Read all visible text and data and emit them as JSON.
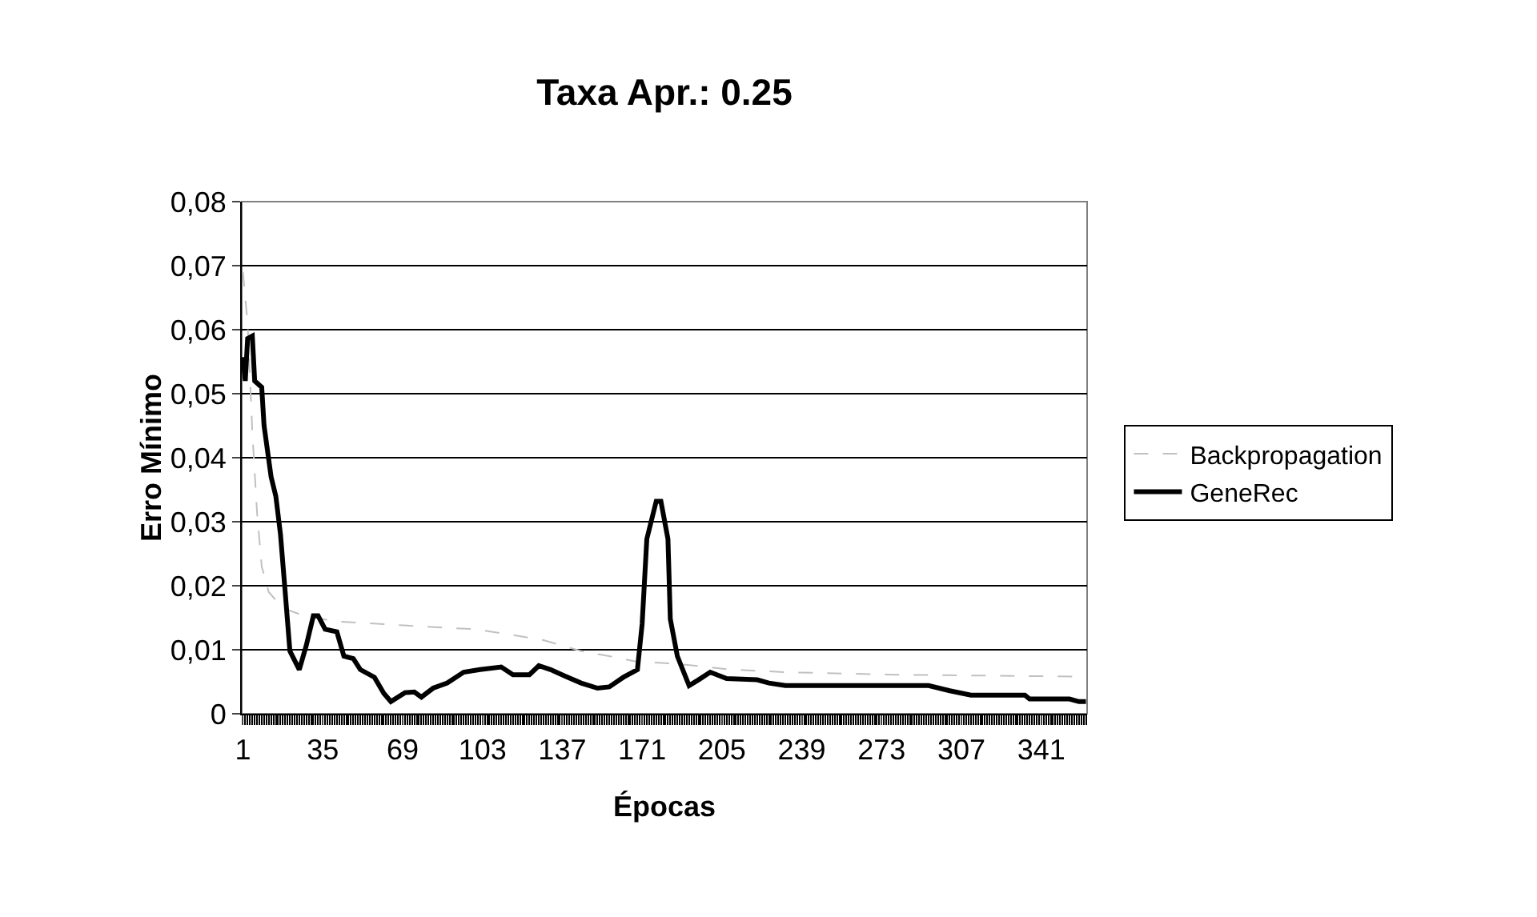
{
  "chart_data": {
    "type": "line",
    "title": "Taxa Apr.: 0.25",
    "xlabel": "Épocas",
    "ylabel": "Erro Mínimo",
    "xlim": [
      0.5,
      360.5
    ],
    "xticks": [
      1,
      35,
      69,
      103,
      137,
      171,
      205,
      239,
      273,
      307,
      341
    ],
    "ylim": [
      0,
      0.08
    ],
    "yticks": [
      {
        "value": 0,
        "label": "0"
      },
      {
        "value": 0.01,
        "label": "0,01"
      },
      {
        "value": 0.02,
        "label": "0,02"
      },
      {
        "value": 0.03,
        "label": "0,03"
      },
      {
        "value": 0.04,
        "label": "0,04"
      },
      {
        "value": 0.05,
        "label": "0,05"
      },
      {
        "value": 0.06,
        "label": "0,06"
      },
      {
        "value": 0.07,
        "label": "0,07"
      },
      {
        "value": 0.08,
        "label": "0,08"
      }
    ],
    "grid": "y",
    "legend": "right",
    "marker": "none",
    "series": [
      {
        "name": "Backpropagation",
        "color": "#c0c0c0",
        "line_style": "dashed",
        "x": [
          1,
          3,
          5,
          7,
          9,
          12,
          18,
          27,
          41,
          61,
          79,
          100,
          116,
          129,
          145,
          157,
          168,
          186,
          209,
          232,
          279,
          359
        ],
        "values": [
          0.069,
          0.061,
          0.044,
          0.0315,
          0.023,
          0.019,
          0.0165,
          0.0153,
          0.0144,
          0.014,
          0.0136,
          0.0132,
          0.0123,
          0.0115,
          0.0098,
          0.009,
          0.0082,
          0.0078,
          0.0069,
          0.0065,
          0.0061,
          0.0058
        ]
      },
      {
        "name": "GeneRec",
        "color": "#000000",
        "line_style": "solid",
        "x": [
          1,
          2,
          3,
          5,
          6,
          9,
          10,
          13,
          15,
          17,
          19,
          21,
          25,
          28,
          31,
          33,
          36,
          41,
          44,
          48,
          51,
          57,
          61,
          64,
          70,
          74,
          77,
          82,
          88,
          95,
          102,
          111,
          116,
          123,
          127,
          132,
          138,
          145,
          152,
          157,
          163,
          169,
          171,
          173,
          177,
          179,
          182,
          183,
          186,
          191,
          195,
          200,
          207,
          220,
          225,
          232,
          293,
          302,
          311,
          334,
          336,
          353,
          357,
          360
        ],
        "values": [
          0.0557,
          0.052,
          0.0586,
          0.059,
          0.052,
          0.051,
          0.045,
          0.037,
          0.034,
          0.028,
          0.019,
          0.0098,
          0.0069,
          0.0107,
          0.0153,
          0.0153,
          0.0132,
          0.0128,
          0.009,
          0.0086,
          0.0069,
          0.0057,
          0.0032,
          0.0019,
          0.0033,
          0.0034,
          0.0026,
          0.004,
          0.0048,
          0.0065,
          0.0069,
          0.0073,
          0.0061,
          0.0061,
          0.0075,
          0.0069,
          0.0059,
          0.0048,
          0.004,
          0.0042,
          0.0057,
          0.0069,
          0.014,
          0.0273,
          0.0332,
          0.0332,
          0.0273,
          0.0148,
          0.009,
          0.0044,
          0.0053,
          0.0065,
          0.0055,
          0.0053,
          0.0048,
          0.0044,
          0.0044,
          0.0036,
          0.0029,
          0.0029,
          0.0023,
          0.0023,
          0.0019,
          0.0019
        ]
      }
    ]
  }
}
